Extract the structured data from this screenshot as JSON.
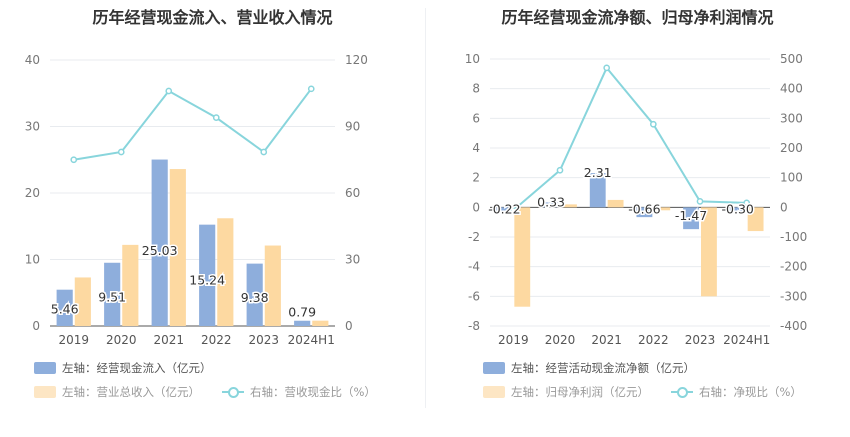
{
  "colors": {
    "bar_primary": "#8eaedc",
    "bar_secondary": "#fdd9a1",
    "line": "#88d5dc",
    "grid": "#e8ebef",
    "tick": "#777777",
    "label": "#333333"
  },
  "chart_data": [
    {
      "type": "bar",
      "title": "历年经营现金流入、营业收入情况",
      "categories": [
        "2019",
        "2020",
        "2021",
        "2022",
        "2023",
        "2024H1"
      ],
      "y_left": {
        "min": 0,
        "max": 40,
        "ticks": [
          "0",
          "10",
          "20",
          "30",
          "40"
        ]
      },
      "y_right": {
        "min": 0,
        "max": 120,
        "ticks": [
          "0",
          "30",
          "60",
          "90",
          "120"
        ]
      },
      "grid": true,
      "series": [
        {
          "name": "左轴：经营现金流入（亿元）",
          "kind": "bar",
          "axis": "left",
          "values": [
            5.46,
            9.51,
            25.03,
            15.24,
            9.38,
            0.79
          ],
          "data_labels": [
            "5.46",
            "9.51",
            "25.03",
            "15.24",
            "9.38",
            "0.79"
          ]
        },
        {
          "name": "左轴：营业总收入（亿元）",
          "kind": "bar",
          "axis": "left",
          "values": [
            7.3,
            12.2,
            23.6,
            16.2,
            12.1,
            0.8
          ]
        },
        {
          "name": "右轴：营收现金比（%）",
          "kind": "line",
          "axis": "right",
          "values": [
            75,
            78.5,
            106,
            94,
            78.5,
            107
          ]
        }
      ],
      "legend_position": "bottom"
    },
    {
      "type": "bar",
      "title": "历年经营现金流净额、归母净利润情况",
      "categories": [
        "2019",
        "2020",
        "2021",
        "2022",
        "2023",
        "2024H1"
      ],
      "y_left": {
        "min": -8,
        "max": 10,
        "ticks": [
          "-8",
          "-6",
          "-4",
          "-2",
          "0",
          "2",
          "4",
          "6",
          "8",
          "10"
        ]
      },
      "y_right": {
        "min": -400,
        "max": 500,
        "ticks": [
          "-400",
          "-300",
          "-200",
          "-100",
          "0",
          "100",
          "200",
          "300",
          "400",
          "500"
        ]
      },
      "grid": true,
      "series": [
        {
          "name": "左轴：经营活动现金流净额（亿元）",
          "kind": "bar",
          "axis": "left",
          "values": [
            -0.22,
            0.33,
            2.31,
            -0.66,
            -1.47,
            -0.3
          ],
          "data_labels": [
            "-0.22",
            "0.33",
            "2.31",
            "-0.66",
            "-1.47",
            "-0.30"
          ]
        },
        {
          "name": "左轴：归母净利润（亿元）",
          "kind": "bar",
          "axis": "left",
          "values": [
            -6.7,
            0.2,
            0.5,
            -0.2,
            -6.0,
            -1.6
          ]
        },
        {
          "name": "右轴：净现比（%）",
          "kind": "line",
          "axis": "right",
          "values": [
            -10,
            125,
            470,
            280,
            20,
            15
          ]
        }
      ],
      "legend_position": "bottom"
    }
  ]
}
